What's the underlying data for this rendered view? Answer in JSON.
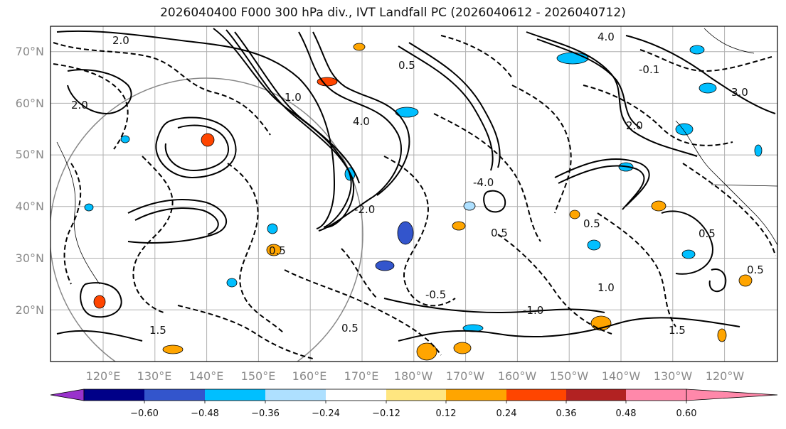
{
  "title": "2026040400 F000 300 hPa div., IVT Landfall PC (2026040612 - 2026040712)",
  "lat_ticks": [
    "70°N",
    "60°N",
    "50°N",
    "40°N",
    "30°N",
    "20°N"
  ],
  "lon_ticks": [
    "120°E",
    "130°E",
    "140°E",
    "150°E",
    "160°E",
    "170°E",
    "180°W",
    "170°W",
    "160°W",
    "150°W",
    "140°W",
    "130°W",
    "120°W"
  ],
  "colorbar": {
    "ticks": [
      "−0.60",
      "−0.48",
      "−0.36",
      "−0.24",
      "−0.12",
      "0.12",
      "0.24",
      "0.36",
      "0.48",
      "0.60"
    ],
    "colors": [
      "#9932cc",
      "#000088",
      "#3355cc",
      "#00bfff",
      "#aee0ff",
      "#ffffff",
      "#ffe680",
      "#ffa500",
      "#ff4500",
      "#b22222",
      "#ff88aa"
    ]
  },
  "contour_labels": [
    "4.0",
    "2.0",
    "-2.0",
    "-1.0",
    "0.5",
    "-0.5",
    "1.0",
    "-0.1",
    "-4.0",
    "1.5",
    "3.0"
  ]
}
